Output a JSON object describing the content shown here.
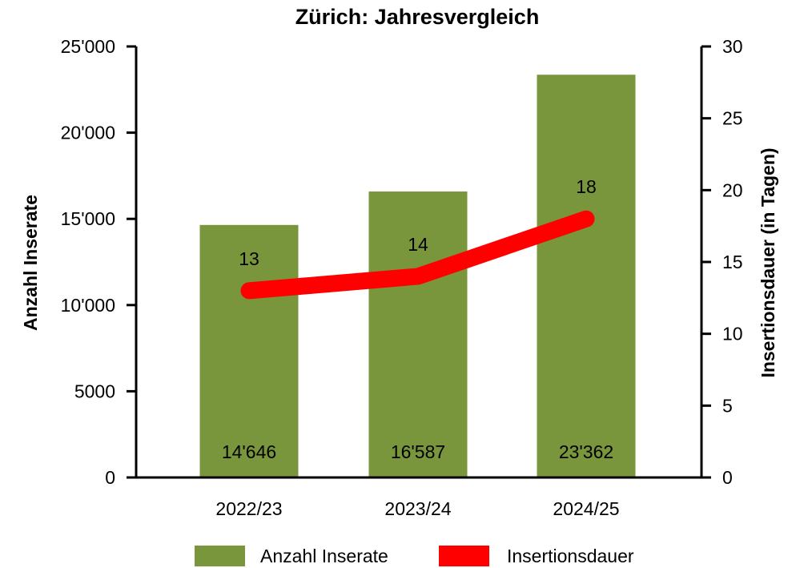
{
  "chart_data": {
    "type": "bar",
    "title": "Zürich: Jahresvergleich",
    "categories": [
      "2022/23",
      "2023/24",
      "2024/25"
    ],
    "series": [
      {
        "name": "Anzahl Inserate",
        "kind": "bar",
        "axis": "left",
        "color": "#7a963c",
        "values": [
          14646,
          16587,
          23362
        ],
        "labels": [
          "14'646",
          "16'587",
          "23'362"
        ]
      },
      {
        "name": "Insertionsdauer",
        "kind": "line",
        "axis": "right",
        "color": "#ff0000",
        "values": [
          13,
          14,
          18
        ],
        "labels": [
          "13",
          "14",
          "18"
        ]
      }
    ],
    "ylabel": "Anzahl Inserate",
    "y2label": "Insertionsdauer (in Tagen)",
    "ylim": [
      0,
      25000
    ],
    "y2lim": [
      0,
      30
    ],
    "yticks": [
      "0",
      "5000",
      "10'000",
      "15'000",
      "20'000",
      "25'000"
    ],
    "y2ticks": [
      "0",
      "5",
      "10",
      "15",
      "20",
      "25",
      "30"
    ],
    "grid": false,
    "legend": "bottom"
  }
}
